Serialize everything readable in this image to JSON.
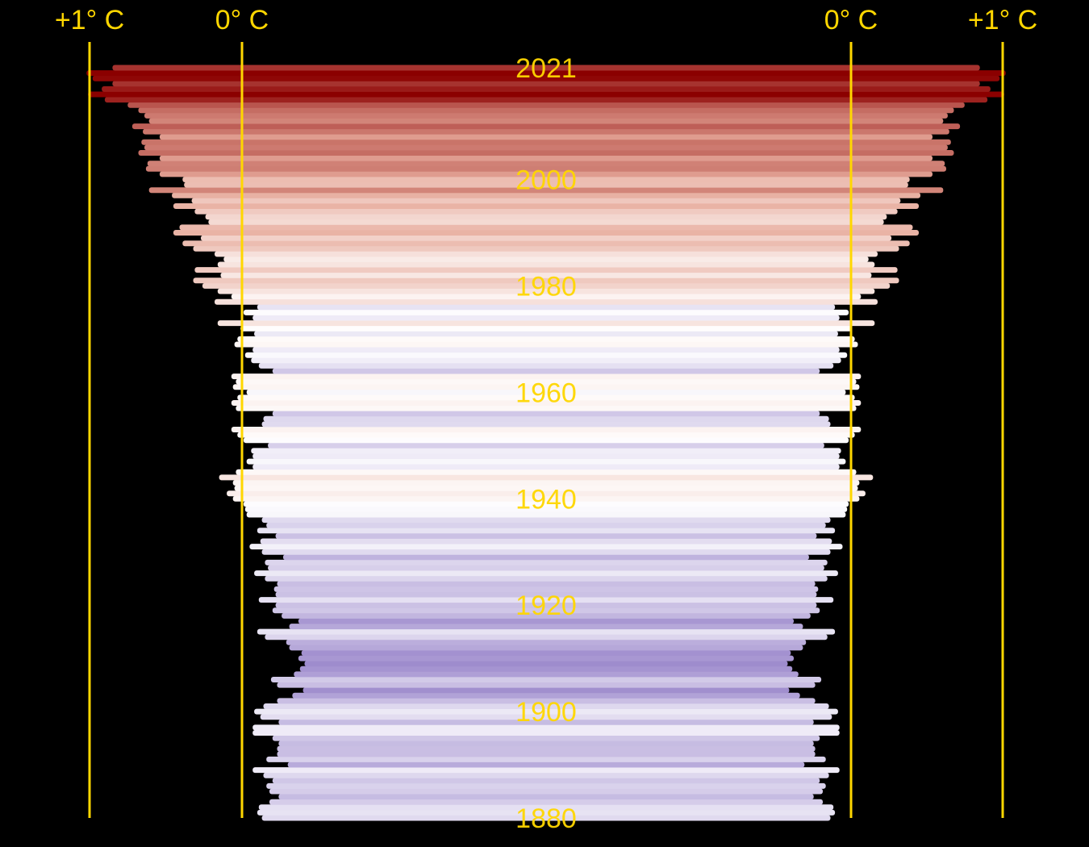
{
  "chart_data": {
    "type": "bar",
    "title": "",
    "description_axis": "Mirrored horizontal bars, one per year; half-width encodes temperature anomaly relative to baseline (0° C). Color: purple = cooler, red = warmer.",
    "xlim": [
      -0.55,
      1.1
    ],
    "ylim": [
      1880,
      2021
    ],
    "axis_labels": {
      "left_outer": "+1° C",
      "left_zero": "0° C",
      "right_zero": "0° C",
      "right_outer": "+1° C"
    },
    "year_labels": [
      "2021",
      "2000",
      "1980",
      "1960",
      "1940",
      "1920",
      "1900",
      "1880"
    ],
    "colors": {
      "background": "#000000",
      "reference_lines": "#ffd700",
      "labels": "#ffd700",
      "cold": "#9c89cc",
      "neutral": "#ffffff",
      "warm": "#8b0000"
    },
    "series": [
      {
        "name": "",
        "years": [
          1880,
          1881,
          1882,
          1883,
          1884,
          1885,
          1886,
          1887,
          1888,
          1889,
          1890,
          1891,
          1892,
          1893,
          1894,
          1895,
          1896,
          1897,
          1898,
          1899,
          1900,
          1901,
          1902,
          1903,
          1904,
          1905,
          1906,
          1907,
          1908,
          1909,
          1910,
          1911,
          1912,
          1913,
          1914,
          1915,
          1916,
          1917,
          1918,
          1919,
          1920,
          1921,
          1922,
          1923,
          1924,
          1925,
          1926,
          1927,
          1928,
          1929,
          1930,
          1931,
          1932,
          1933,
          1934,
          1935,
          1936,
          1937,
          1938,
          1939,
          1940,
          1941,
          1942,
          1943,
          1944,
          1945,
          1946,
          1947,
          1948,
          1949,
          1950,
          1951,
          1952,
          1953,
          1954,
          1955,
          1956,
          1957,
          1958,
          1959,
          1960,
          1961,
          1962,
          1963,
          1964,
          1965,
          1966,
          1967,
          1968,
          1969,
          1970,
          1971,
          1972,
          1973,
          1974,
          1975,
          1976,
          1977,
          1978,
          1979,
          1980,
          1981,
          1982,
          1983,
          1984,
          1985,
          1986,
          1987,
          1988,
          1989,
          1990,
          1991,
          1992,
          1993,
          1994,
          1995,
          1996,
          1997,
          1998,
          1999,
          2000,
          2001,
          2002,
          2003,
          2004,
          2005,
          2006,
          2007,
          2008,
          2009,
          2010,
          2011,
          2012,
          2013,
          2014,
          2015,
          2016,
          2017,
          2018,
          2019,
          2020,
          2021
        ],
        "values": [
          -0.13,
          -0.1,
          -0.11,
          -0.18,
          -0.24,
          -0.18,
          -0.16,
          -0.2,
          -0.14,
          -0.07,
          -0.3,
          -0.16,
          -0.23,
          -0.23,
          -0.24,
          -0.2,
          -0.07,
          -0.07,
          -0.24,
          -0.12,
          -0.08,
          -0.14,
          -0.23,
          -0.33,
          -0.4,
          -0.23,
          -0.19,
          -0.34,
          -0.38,
          -0.41,
          -0.37,
          -0.39,
          -0.31,
          -0.29,
          -0.15,
          -0.1,
          -0.31,
          -0.37,
          -0.26,
          -0.2,
          -0.22,
          -0.11,
          -0.22,
          -0.21,
          -0.23,
          -0.15,
          -0.08,
          -0.17,
          -0.15,
          -0.27,
          -0.13,
          -0.05,
          -0.12,
          -0.22,
          -0.1,
          -0.16,
          -0.13,
          -0.03,
          -0.02,
          -0.01,
          0.06,
          0.1,
          0.05,
          0.06,
          0.15,
          0.04,
          -0.07,
          -0.03,
          -0.07,
          -0.06,
          -0.17,
          -0.01,
          0.03,
          0.07,
          -0.13,
          -0.14,
          -0.2,
          0.04,
          0.07,
          0.03,
          -0.03,
          0.06,
          0.04,
          0.07,
          -0.2,
          -0.11,
          -0.06,
          -0.02,
          -0.07,
          0.05,
          0.03,
          -0.08,
          0.01,
          0.16,
          -0.07,
          -0.01,
          -0.1,
          0.18,
          0.07,
          0.16,
          0.26,
          0.32,
          0.14,
          0.31,
          0.16,
          0.12,
          0.18,
          0.32,
          0.39,
          0.27,
          0.45,
          0.41,
          0.22,
          0.24,
          0.31,
          0.45,
          0.33,
          0.46,
          0.61,
          0.38,
          0.39,
          0.54,
          0.63,
          0.62,
          0.54,
          0.68,
          0.64,
          0.66,
          0.54,
          0.65,
          0.72,
          0.61,
          0.64,
          0.68,
          0.75,
          0.9,
          1.01,
          0.92,
          0.85,
          0.98,
          1.02,
          0.85
        ]
      }
    ]
  }
}
